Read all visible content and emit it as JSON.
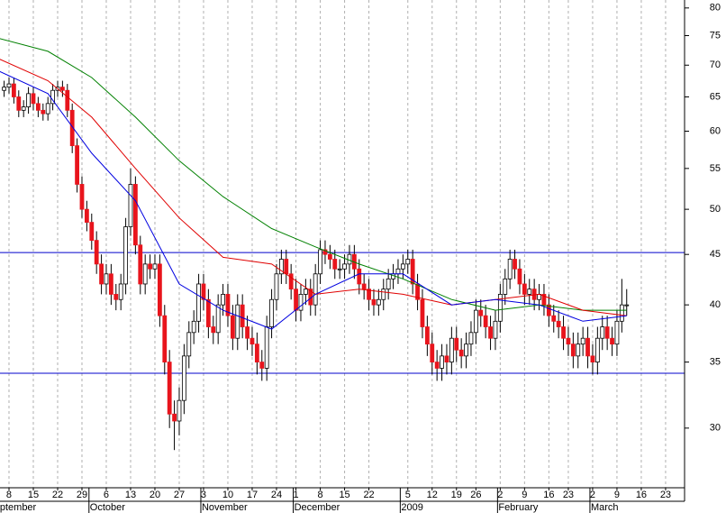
{
  "chart_data": {
    "type": "candlestick",
    "log_scale": true,
    "grid": true,
    "up_color": "#ffffff",
    "down_color": "#e8141c",
    "xlim": [
      -1.85,
      138.9
    ],
    "ylim": [
      26.1,
      81.5
    ],
    "yticks": [
      30,
      35,
      40,
      45,
      50,
      55,
      60,
      65,
      70,
      75,
      80
    ],
    "xticks": [
      {
        "value": 0,
        "label": "8"
      },
      {
        "value": 5,
        "label": "15"
      },
      {
        "value": 10,
        "label": "22"
      },
      {
        "value": 15,
        "label": "29"
      },
      {
        "value": 20,
        "label": "6"
      },
      {
        "value": 25,
        "label": "13"
      },
      {
        "value": 30,
        "label": "20"
      },
      {
        "value": 35,
        "label": "27"
      },
      {
        "value": 40,
        "label": "3"
      },
      {
        "value": 45,
        "label": "10"
      },
      {
        "value": 50,
        "label": "17"
      },
      {
        "value": 55,
        "label": "24"
      },
      {
        "value": 59,
        "label": "1"
      },
      {
        "value": 64,
        "label": "8"
      },
      {
        "value": 69,
        "label": "15"
      },
      {
        "value": 74,
        "label": "22"
      },
      {
        "value": 82,
        "label": "5"
      },
      {
        "value": 87,
        "label": "12"
      },
      {
        "value": 92,
        "label": "19"
      },
      {
        "value": 96,
        "label": "26"
      },
      {
        "value": 101,
        "label": "2"
      },
      {
        "value": 106,
        "label": "9"
      },
      {
        "value": 111,
        "label": "16"
      },
      {
        "value": 115,
        "label": "23"
      },
      {
        "value": 120,
        "label": "2"
      },
      {
        "value": 125,
        "label": "9"
      },
      {
        "value": 130,
        "label": "16"
      },
      {
        "value": 135,
        "label": "23"
      }
    ],
    "month_labels": [
      {
        "value": -4,
        "label": "September"
      },
      {
        "value": 17,
        "label": "October"
      },
      {
        "value": 40,
        "label": "November"
      },
      {
        "value": 59,
        "label": "December"
      },
      {
        "value": 81,
        "label": "2009"
      },
      {
        "value": 101,
        "label": "February"
      },
      {
        "value": 120,
        "label": "March"
      }
    ],
    "x": [
      -1,
      0,
      1,
      2,
      3,
      4,
      5,
      6,
      7,
      8,
      9,
      10,
      11,
      12,
      13,
      14,
      15,
      16,
      17,
      18,
      19,
      20,
      21,
      22,
      23,
      24,
      25,
      26,
      27,
      28,
      29,
      30,
      31,
      32,
      33,
      34,
      35,
      36,
      37,
      38,
      39,
      40,
      41,
      42,
      43,
      44,
      45,
      46,
      47,
      48,
      49,
      50,
      51,
      52,
      53,
      54,
      55,
      56,
      57,
      58,
      59,
      60,
      61,
      62,
      63,
      64,
      65,
      66,
      67,
      68,
      69,
      70,
      71,
      72,
      73,
      74,
      75,
      76,
      77,
      78,
      79,
      80,
      81,
      82,
      83,
      84,
      85,
      86,
      87,
      88,
      89,
      90,
      91,
      92,
      93,
      94,
      95,
      96,
      97,
      98,
      99,
      100,
      101,
      102,
      103,
      104,
      105,
      106,
      107,
      108,
      109,
      110,
      111,
      112,
      113,
      114,
      115,
      116,
      117,
      118,
      119,
      120,
      121,
      122,
      123,
      124,
      125,
      126,
      127
    ],
    "open": [
      66,
      66.5,
      67,
      65,
      63,
      63.5,
      65.5,
      64,
      63,
      62.5,
      64,
      66,
      66.5,
      66,
      63,
      58,
      53,
      50,
      48.5,
      46.5,
      44,
      42,
      43,
      41,
      40.5,
      42,
      48,
      53,
      46,
      42,
      44,
      43.5,
      44,
      39,
      35,
      31,
      30.5,
      32,
      35.5,
      37.5,
      38.5,
      42,
      40.5,
      38,
      37.5,
      40,
      41,
      39,
      37,
      40,
      38,
      37,
      36.5,
      35,
      34.5,
      38,
      40.5,
      43,
      44.5,
      43,
      41.5,
      39.5,
      41,
      41.5,
      40,
      43,
      45.5,
      45,
      44.5,
      43.5,
      43.5,
      44,
      45,
      43.5,
      42,
      41.5,
      40.5,
      40,
      40.5,
      41.5,
      42.5,
      43,
      43.5,
      44,
      44.5,
      42,
      40.5,
      38,
      36.5,
      35,
      34.5,
      35.5,
      35,
      37,
      36,
      35.5,
      36.5,
      37.5,
      39.5,
      39,
      38,
      37,
      38.5,
      41,
      42.5,
      44.5,
      43.5,
      42,
      41,
      41.5,
      40.5,
      41,
      40,
      39,
      38.5,
      38,
      37,
      36.5,
      35.5,
      36.5,
      37,
      35.5,
      35,
      37,
      38,
      37,
      36.5,
      38.5,
      40
    ],
    "high": [
      67.5,
      68,
      68,
      66,
      64.5,
      66.5,
      66.5,
      65,
      64,
      65,
      67,
      67.5,
      67.5,
      67,
      64,
      59,
      54,
      51,
      49.5,
      47.5,
      45,
      44,
      44,
      42,
      43,
      49,
      55,
      54,
      47,
      45,
      45,
      45,
      45,
      40,
      36,
      32,
      33,
      36.5,
      38.5,
      39.5,
      43,
      43,
      41.5,
      39,
      41,
      42,
      42,
      40,
      41,
      41,
      39,
      38,
      37.5,
      36,
      39,
      41.5,
      44,
      45.5,
      45.5,
      44,
      42.5,
      42,
      42.5,
      42.5,
      44,
      46.5,
      46.5,
      46,
      45.5,
      44.5,
      45,
      46,
      46,
      44.5,
      43,
      42.5,
      41.5,
      41.5,
      42.5,
      43.5,
      44,
      44.5,
      45,
      45.5,
      45.5,
      43,
      41.5,
      39,
      37.5,
      36,
      36.5,
      36.5,
      38,
      38,
      37,
      37.5,
      38.5,
      40.5,
      40.5,
      40,
      39,
      39.5,
      42,
      43.5,
      45.5,
      45.5,
      44.5,
      43,
      42.5,
      42.5,
      42,
      42,
      41,
      40,
      39.5,
      39,
      38,
      37.5,
      37.5,
      38,
      38,
      36.5,
      38,
      39,
      39,
      38,
      39.5,
      42.5,
      41.5
    ],
    "low": [
      65,
      65.5,
      64,
      62,
      62,
      62.5,
      63,
      62,
      61.5,
      61.5,
      63,
      65,
      65,
      62,
      57,
      52,
      49,
      47.5,
      45.5,
      43,
      41,
      41,
      40,
      39.5,
      39.5,
      41,
      47,
      45,
      41,
      41,
      42.5,
      42.5,
      38,
      34,
      30,
      28.5,
      29.5,
      31,
      34.5,
      36.5,
      37.5,
      39.5,
      37,
      36.5,
      36.5,
      39,
      38,
      36,
      36,
      37,
      36,
      35.5,
      34,
      33.5,
      33.5,
      37,
      39.5,
      42,
      42,
      40.5,
      38.5,
      38.5,
      40,
      39,
      39,
      42,
      44,
      43.5,
      42.5,
      42.5,
      42.5,
      43,
      42.5,
      41,
      40.5,
      39.5,
      39,
      39,
      39.5,
      40.5,
      41.5,
      42,
      42.5,
      43,
      41,
      39.5,
      37,
      35.5,
      34,
      33.5,
      33.5,
      34,
      34,
      35,
      34.5,
      34.5,
      35.5,
      36.5,
      38,
      37,
      36,
      36,
      37.5,
      40,
      41.5,
      42.5,
      41,
      40,
      40,
      39.5,
      39.5,
      39,
      38,
      37.5,
      37,
      36,
      35.5,
      34.5,
      34.5,
      35.5,
      34.5,
      34,
      34,
      36,
      36,
      35.5,
      35.5,
      37.5,
      39
    ],
    "close": [
      66.5,
      67,
      65,
      63,
      63.5,
      65.5,
      64,
      63,
      62.5,
      64,
      66,
      66.5,
      66,
      63,
      58,
      53,
      50,
      48.5,
      46.5,
      44,
      42,
      43,
      41,
      40.5,
      42,
      48,
      53,
      46,
      42,
      44,
      43.5,
      44,
      39,
      35,
      31,
      30.5,
      32,
      35.5,
      37.5,
      38.5,
      42,
      40.5,
      38,
      37.5,
      40,
      41,
      39,
      37,
      40,
      38,
      37,
      36.5,
      35,
      34.5,
      38,
      40.5,
      43,
      44.5,
      43,
      41.5,
      39.5,
      41,
      41.5,
      40,
      43,
      45.5,
      45,
      44.5,
      43.5,
      43.5,
      44,
      45,
      43.5,
      42,
      41.5,
      40.5,
      40,
      40.5,
      41.5,
      42.5,
      43,
      43.5,
      44,
      44.5,
      42,
      40.5,
      38,
      36.5,
      35,
      34.5,
      35.5,
      35,
      37,
      36,
      35.5,
      36.5,
      37.5,
      39.5,
      39,
      38,
      37,
      38.5,
      41,
      42.5,
      44.5,
      43.5,
      42,
      41,
      41.5,
      40.5,
      41,
      40,
      39,
      38.5,
      38,
      37,
      36.5,
      35.5,
      36.5,
      37,
      35.5,
      35,
      37,
      38,
      37,
      36.5,
      38.5,
      40,
      40
    ],
    "moving_averages": [
      {
        "color": "#008000",
        "x": [
          -2,
          8,
          17,
          26,
          35,
          44,
          54,
          63,
          72,
          81,
          91,
          100,
          109,
          118,
          127
        ],
        "values": [
          74.5,
          72.3,
          68,
          62,
          56,
          51.5,
          47.8,
          45.8,
          44,
          42.5,
          40.5,
          39.5,
          40,
          39.5,
          39.5
        ]
      },
      {
        "color": "#e00000",
        "x": [
          -2,
          8,
          17,
          26,
          35,
          44,
          54,
          63,
          72,
          81,
          91,
          100,
          109,
          118,
          127
        ],
        "values": [
          71,
          67.5,
          62,
          55,
          49,
          44.7,
          44,
          41,
          41.5,
          41,
          40,
          40.5,
          41,
          39.5,
          39
        ]
      },
      {
        "color": "#0000e0",
        "x": [
          -2,
          8,
          17,
          26,
          35,
          44,
          54,
          63,
          72,
          81,
          91,
          100,
          109,
          118,
          127
        ],
        "values": [
          69,
          65.5,
          57,
          51,
          42,
          39.5,
          37.8,
          41,
          43,
          43,
          40,
          40.5,
          40,
          38.5,
          39
        ]
      }
    ],
    "hlines": {
      "color": "#0000cc",
      "values": [
        45.2,
        34.1
      ]
    }
  }
}
